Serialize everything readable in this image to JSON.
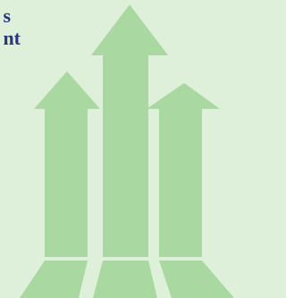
{
  "heading": {
    "lines": [
      "s",
      "nt"
    ]
  }
}
